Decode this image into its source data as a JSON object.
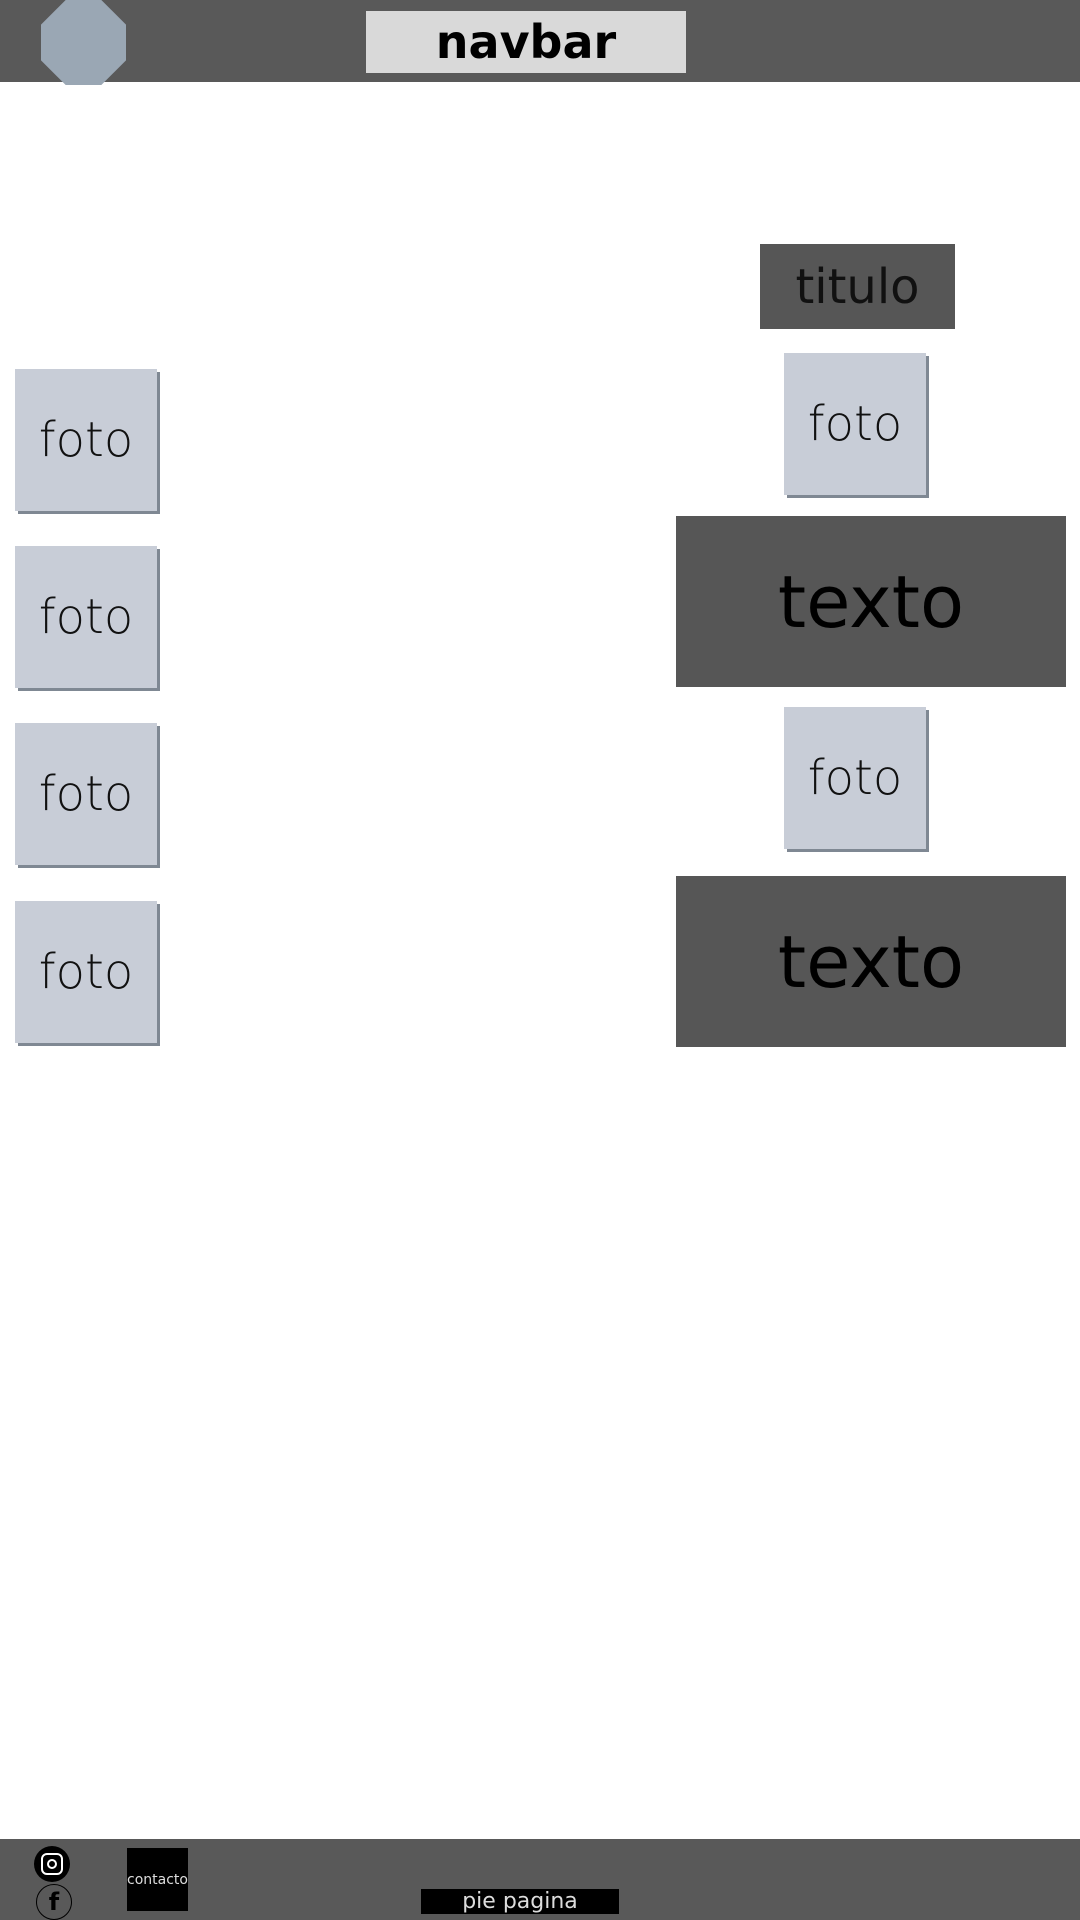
{
  "navbar": {
    "title": "navbar",
    "logo_icon": "octagon-logo-icon"
  },
  "left_photos": [
    "foto",
    "foto",
    "foto",
    "foto"
  ],
  "right_column": {
    "title": "titulo",
    "photos": [
      "foto",
      "foto"
    ],
    "texts": [
      "texto",
      "texto"
    ]
  },
  "footer": {
    "instagram_icon": "instagram-icon",
    "facebook_icon": "facebook-icon",
    "facebook_glyph": "f",
    "contact_label": "contacto",
    "label": "pie pagina"
  },
  "colors": {
    "dark_gray": "#595959",
    "photo_fill": "#c8cdd7",
    "logo_fill": "#9aa7b4"
  }
}
